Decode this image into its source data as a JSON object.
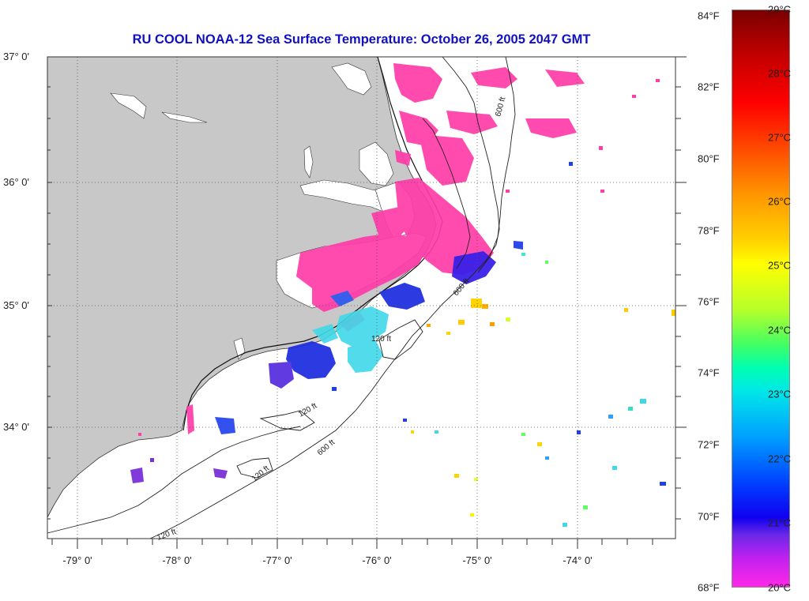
{
  "title": "RU COOL  NOAA-12  Sea Surface Temperature:  October 26, 2005 2047 GMT",
  "latitude_labels": [
    "37° 0'",
    "36° 0'",
    "35° 0'",
    "34° 0'"
  ],
  "longitude_labels": [
    "-79° 0'",
    "-78° 0'",
    "-77° 0'",
    "-76° 0'",
    "-75° 0'",
    "-74° 0'"
  ],
  "contour_labels": [
    "600 ft",
    "120 ft",
    "600 ft",
    "120 ft",
    "120 ft",
    "600 ft",
    "120 ft"
  ],
  "colorbar": {
    "fahrenheit": [
      "84°F",
      "82°F",
      "80°F",
      "78°F",
      "76°F",
      "74°F",
      "72°F",
      "70°F",
      "68°F"
    ],
    "celsius": [
      "29°C",
      "28°C",
      "27°C",
      "26°C",
      "25°C",
      "24°C",
      "23°C",
      "22°C",
      "21°C",
      "20°C"
    ]
  },
  "colors": {
    "land": "#c8c8c8",
    "title": "#1010c0",
    "cold_sst": "#ff3ca8",
    "blue_sst": "#2030e0",
    "cyan_sst": "#40d8e8",
    "warm_sst": "#ffd400"
  }
}
